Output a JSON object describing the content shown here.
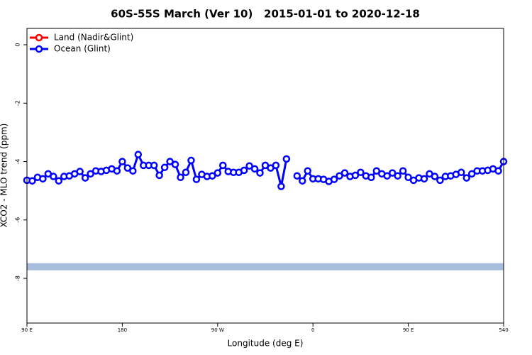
{
  "chart_data": {
    "type": "line",
    "title": "60S-55S March (Ver 10)   2015-01-01 to 2020-12-18",
    "x_label": "Longitude (deg E)",
    "y_label": "XCO2 - MLO trend (ppm)",
    "x": [
      90,
      95,
      100,
      105,
      110,
      115,
      120,
      125,
      130,
      135,
      140,
      145,
      150,
      155,
      160,
      165,
      170,
      175,
      180,
      185,
      190,
      195,
      200,
      205,
      210,
      215,
      220,
      225,
      230,
      235,
      240,
      245,
      250,
      255,
      260,
      265,
      270,
      275,
      280,
      285,
      290,
      295,
      300,
      305,
      310,
      315,
      320,
      325,
      330,
      335,
      340,
      345,
      350,
      355,
      360,
      365,
      370,
      375,
      380,
      385,
      390,
      395,
      400,
      405,
      410,
      415,
      420,
      425,
      430,
      435,
      440,
      445,
      450,
      455,
      460,
      465,
      470,
      475,
      480,
      485,
      490,
      495,
      500,
      505,
      510,
      515,
      520,
      525,
      530,
      535,
      540
    ],
    "series": [
      {
        "name": "Land (Nadir&Glint)",
        "color": "#ff0000",
        "values": [
          null,
          null,
          null,
          null,
          null,
          null,
          null,
          null,
          null,
          null,
          null,
          null,
          null,
          null,
          null,
          null,
          null,
          null,
          null,
          null,
          null,
          null,
          null,
          null,
          null,
          null,
          null,
          null,
          null,
          null,
          null,
          null,
          null,
          null,
          null,
          null,
          null,
          null,
          null,
          null,
          null,
          null,
          null,
          null,
          null,
          null,
          null,
          null,
          null,
          null,
          null,
          null,
          null,
          null,
          null,
          null,
          null,
          null,
          null,
          null,
          null,
          null,
          null,
          null,
          null,
          null,
          null,
          null,
          null,
          null,
          null,
          null,
          null,
          null,
          null,
          null,
          null,
          null,
          null,
          null,
          null,
          null,
          null,
          null,
          null,
          null,
          null,
          null,
          null,
          null,
          null
        ]
      },
      {
        "name": "Ocean (Glint)",
        "color": "#0000ff",
        "values": [
          -4.64,
          -4.66,
          -4.54,
          -4.59,
          -4.42,
          -4.51,
          -4.66,
          -4.51,
          -4.49,
          -4.42,
          -4.34,
          -4.56,
          -4.42,
          -4.32,
          -4.34,
          -4.3,
          -4.25,
          -4.32,
          -4.0,
          -4.22,
          -4.32,
          -3.76,
          -4.13,
          -4.13,
          -4.13,
          -4.47,
          -4.2,
          -4.0,
          -4.1,
          -4.54,
          -4.37,
          -3.96,
          -4.61,
          -4.44,
          -4.51,
          -4.49,
          -4.39,
          -4.13,
          -4.34,
          -4.37,
          -4.37,
          -4.3,
          -4.15,
          -4.25,
          -4.39,
          -4.13,
          -4.22,
          -4.13,
          -4.85,
          -3.91,
          null,
          -4.49,
          -4.66,
          -4.32,
          -4.59,
          -4.59,
          -4.61,
          -4.68,
          -4.61,
          -4.49,
          -4.39,
          -4.51,
          -4.47,
          -4.37,
          -4.49,
          -4.54,
          -4.32,
          -4.42,
          -4.49,
          -4.39,
          -4.49,
          -4.32,
          -4.54,
          -4.64,
          -4.56,
          -4.59,
          -4.42,
          -4.51,
          -4.64,
          -4.51,
          -4.49,
          -4.44,
          -4.37,
          -4.56,
          -4.42,
          -4.32,
          -4.32,
          -4.3,
          -4.25,
          -4.32,
          -4.0
        ]
      }
    ],
    "band": {
      "value": -7.6,
      "color": "#a6bddb"
    },
    "xlim": [
      90,
      540
    ],
    "xticks": [
      {
        "value": 90,
        "label": "90 E"
      },
      180,
      {
        "value": 270,
        "label": "90 W"
      },
      {
        "value": 360,
        "label": "0"
      },
      {
        "value": 450,
        "label": "90 E"
      },
      540
    ],
    "ylim": [
      -9.53,
      0.56
    ],
    "yticks": [
      0,
      -2,
      -4,
      -6,
      -8
    ],
    "legend": "top-left"
  }
}
